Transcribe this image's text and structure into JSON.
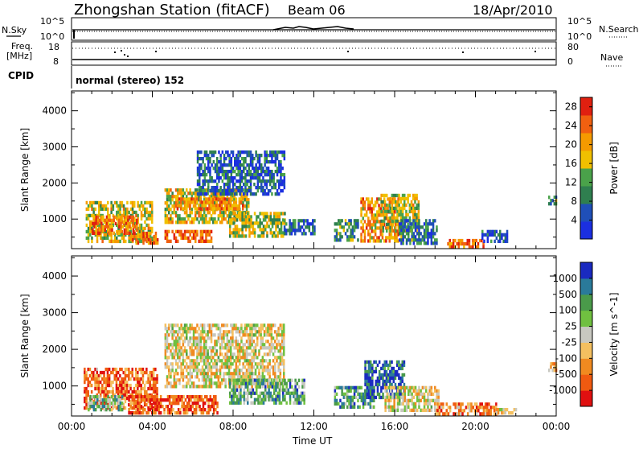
{
  "header": {
    "station_title": "Zhongshan Station (fitACF)",
    "beam": "Beam 06",
    "date": "18/Apr/2010"
  },
  "top_panels": {
    "nsky_label": "N.Sky",
    "nsky_top_tick": "10^5",
    "nsky_bottom_tick": "10^0",
    "nsearch_label": "N.Search",
    "nsearch_top_tick": "10^5",
    "nsearch_bottom_tick": "10^0",
    "freq_label_1": "Freq.",
    "freq_label_2": "[MHz]",
    "freq_top_tick": "18",
    "freq_bottom_tick": "8",
    "nave_label": "Nave",
    "nave_top_tick": "80",
    "nave_bottom_tick": "0",
    "cpid_label": "CPID",
    "cpid_value": "normal (stereo) 152"
  },
  "colors": {
    "power": [
      "#1b2fe0",
      "#1f4fb8",
      "#2f7f4f",
      "#4aa24a",
      "#f0c000",
      "#f59a00",
      "#f06010",
      "#e02010"
    ],
    "velocity": [
      "#e01010",
      "#f05a10",
      "#f08a20",
      "#f4c060",
      "#c8c8c0",
      "#70c040",
      "#4a9a4a",
      "#2a7a9a",
      "#1a2ac0"
    ]
  },
  "chart_data": [
    {
      "type": "heatmap",
      "title": "",
      "xlabel": "Time UT",
      "ylabel": "Slant Range [km]",
      "x_ticks": [
        "00:00",
        "04:00",
        "08:00",
        "12:00",
        "16:00",
        "20:00",
        "00:00"
      ],
      "y_ticks": [
        "1000",
        "2000",
        "3000",
        "4000"
      ],
      "xlim_hours": [
        0,
        24
      ],
      "ylim_km": [
        180,
        4550
      ],
      "colorbar": {
        "label": "Power [dB]",
        "ticks": [
          "4",
          "8",
          "12",
          "16",
          "20",
          "24",
          "28"
        ],
        "range": [
          0,
          30
        ]
      },
      "regions": [
        {
          "t0": 0.7,
          "t1": 4.0,
          "r0": 400,
          "r1": 1500,
          "level": 0.55
        },
        {
          "t0": 1.0,
          "t1": 3.2,
          "r0": 600,
          "r1": 1100,
          "level": 0.75
        },
        {
          "t0": 2.9,
          "t1": 4.3,
          "r0": 300,
          "r1": 650,
          "level": 0.8
        },
        {
          "t0": 4.6,
          "t1": 6.9,
          "r0": 350,
          "r1": 700,
          "level": 0.85
        },
        {
          "t0": 4.6,
          "t1": 8.8,
          "r0": 950,
          "r1": 1850,
          "level": 0.55
        },
        {
          "t0": 5.2,
          "t1": 8.5,
          "r0": 1300,
          "r1": 1600,
          "level": 0.75
        },
        {
          "t0": 6.2,
          "t1": 10.5,
          "r0": 1700,
          "r1": 2900,
          "level": 0.2
        },
        {
          "t0": 7.8,
          "t1": 10.6,
          "r0": 500,
          "r1": 1200,
          "level": 0.5
        },
        {
          "t0": 10.5,
          "t1": 12.0,
          "r0": 600,
          "r1": 1000,
          "level": 0.25
        },
        {
          "t0": 13.0,
          "t1": 14.2,
          "r0": 400,
          "r1": 1000,
          "level": 0.35
        },
        {
          "t0": 14.3,
          "t1": 16.2,
          "r0": 400,
          "r1": 1600,
          "level": 0.7
        },
        {
          "t0": 15.3,
          "t1": 17.2,
          "r0": 700,
          "r1": 1700,
          "level": 0.55
        },
        {
          "t0": 16.2,
          "t1": 18.1,
          "r0": 300,
          "r1": 1000,
          "level": 0.3
        },
        {
          "t0": 18.6,
          "t1": 20.4,
          "r0": 200,
          "r1": 450,
          "level": 0.78
        },
        {
          "t0": 20.3,
          "t1": 21.6,
          "r0": 350,
          "r1": 700,
          "level": 0.18
        },
        {
          "t0": 23.6,
          "t1": 24.0,
          "r0": 1450,
          "r1": 1650,
          "level": 0.35
        }
      ]
    },
    {
      "type": "heatmap",
      "title": "",
      "xlabel": "Time UT",
      "ylabel": "Slant Range [km]",
      "x_ticks": [
        "00:00",
        "04:00",
        "08:00",
        "12:00",
        "16:00",
        "20:00",
        "00:00"
      ],
      "y_ticks": [
        "1000",
        "2000",
        "3000",
        "4000"
      ],
      "xlim_hours": [
        0,
        24
      ],
      "ylim_km": [
        180,
        4550
      ],
      "colorbar": {
        "label": "Velocity [m s^-1]",
        "ticks": [
          "1000",
          "500",
          "100",
          "25",
          "-25",
          "-100",
          "-500",
          "-1000"
        ],
        "range": [
          -1200,
          1200
        ]
      },
      "regions": [
        {
          "t0": 0.6,
          "t1": 4.2,
          "r0": 400,
          "r1": 1500,
          "level": 0.22
        },
        {
          "t0": 0.8,
          "t1": 2.5,
          "r0": 350,
          "r1": 750,
          "level": 0.65
        },
        {
          "t0": 2.8,
          "t1": 7.2,
          "r0": 300,
          "r1": 750,
          "level": 0.15
        },
        {
          "t0": 4.6,
          "t1": 10.5,
          "r0": 1000,
          "r1": 2700,
          "level": 0.45
        },
        {
          "t0": 7.8,
          "t1": 11.5,
          "r0": 500,
          "r1": 1200,
          "level": 0.7
        },
        {
          "t0": 13.0,
          "t1": 15.0,
          "r0": 400,
          "r1": 1000,
          "level": 0.72
        },
        {
          "t0": 14.5,
          "t1": 16.5,
          "r0": 700,
          "r1": 1700,
          "level": 0.88
        },
        {
          "t0": 15.5,
          "t1": 18.2,
          "r0": 300,
          "r1": 1000,
          "level": 0.45
        },
        {
          "t0": 18.0,
          "t1": 21.0,
          "r0": 200,
          "r1": 550,
          "level": 0.25
        },
        {
          "t0": 21.0,
          "t1": 22.0,
          "r0": 250,
          "r1": 400,
          "level": 0.45
        },
        {
          "t0": 23.6,
          "t1": 24.0,
          "r0": 1450,
          "r1": 1650,
          "level": 0.3
        }
      ]
    }
  ]
}
